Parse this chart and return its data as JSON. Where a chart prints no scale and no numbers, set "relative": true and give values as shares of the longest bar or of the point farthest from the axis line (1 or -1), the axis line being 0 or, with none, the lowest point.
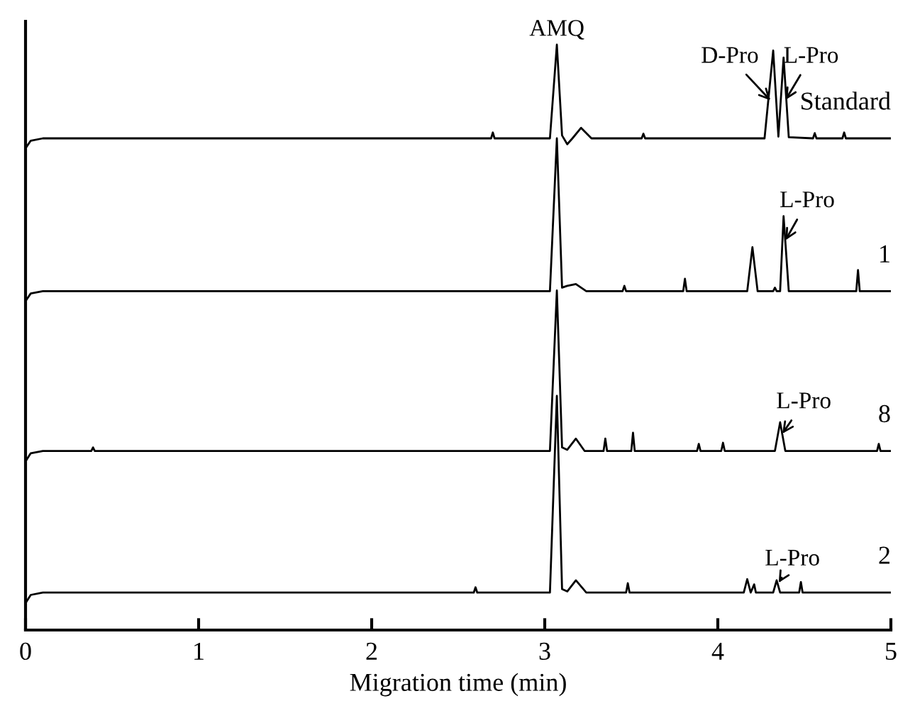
{
  "chart_data": {
    "type": "line",
    "relative": true,
    "xlabel": "Migration time (min)",
    "xlim": [
      0,
      5
    ],
    "xticks": [
      0,
      1,
      2,
      3,
      4,
      5
    ],
    "series": [
      {
        "name": "Standard",
        "color": "#000000",
        "x": [
          0,
          0.03,
          0.1,
          2.69,
          2.7,
          2.71,
          3.03,
          3.07,
          3.1,
          3.13,
          3.16,
          3.21,
          3.27,
          3.56,
          3.57,
          3.58,
          4.27,
          4.32,
          4.35,
          4.38,
          4.41,
          4.55,
          4.56,
          4.57,
          4.72,
          4.73,
          4.74,
          5.0
        ],
        "values": [
          0.823,
          0.836,
          0.84,
          0.84,
          0.85,
          0.84,
          0.84,
          1.0,
          0.845,
          0.83,
          0.84,
          0.858,
          0.84,
          0.84,
          0.848,
          0.84,
          0.84,
          0.99,
          0.843,
          0.978,
          0.842,
          0.84,
          0.849,
          0.84,
          0.84,
          0.85,
          0.84,
          0.84
        ]
      },
      {
        "name": "1",
        "color": "#000000",
        "x": [
          0,
          0.03,
          0.1,
          3.03,
          3.07,
          3.1,
          3.13,
          3.18,
          3.24,
          3.45,
          3.46,
          3.47,
          3.8,
          3.81,
          3.82,
          4.17,
          4.2,
          4.23,
          4.32,
          4.33,
          4.34,
          4.36,
          4.38,
          4.41,
          4.8,
          4.81,
          4.82,
          5.0
        ],
        "values": [
          0.562,
          0.575,
          0.579,
          0.579,
          0.84,
          0.585,
          0.588,
          0.591,
          0.579,
          0.579,
          0.588,
          0.579,
          0.579,
          0.6,
          0.579,
          0.579,
          0.654,
          0.579,
          0.579,
          0.585,
          0.579,
          0.579,
          0.707,
          0.579,
          0.579,
          0.615,
          0.579,
          0.579
        ]
      },
      {
        "name": "8",
        "color": "#000000",
        "x": [
          0,
          0.03,
          0.1,
          0.38,
          0.39,
          0.4,
          3.03,
          3.07,
          3.1,
          3.13,
          3.18,
          3.23,
          3.34,
          3.35,
          3.36,
          3.5,
          3.51,
          3.52,
          3.88,
          3.89,
          3.9,
          4.02,
          4.03,
          4.04,
          4.33,
          4.36,
          4.39,
          4.92,
          4.93,
          4.94,
          5.0
        ],
        "values": [
          0.288,
          0.302,
          0.306,
          0.306,
          0.312,
          0.306,
          0.306,
          0.58,
          0.312,
          0.308,
          0.327,
          0.306,
          0.306,
          0.327,
          0.306,
          0.306,
          0.337,
          0.306,
          0.306,
          0.318,
          0.306,
          0.306,
          0.32,
          0.306,
          0.306,
          0.355,
          0.306,
          0.306,
          0.318,
          0.306,
          0.306
        ]
      },
      {
        "name": "2",
        "color": "#000000",
        "x": [
          0,
          0.03,
          0.1,
          2.59,
          2.6,
          2.61,
          3.03,
          3.07,
          3.1,
          3.13,
          3.18,
          3.24,
          3.47,
          3.48,
          3.49,
          4.15,
          4.17,
          4.19,
          4.21,
          4.22,
          4.32,
          4.34,
          4.36,
          4.47,
          4.48,
          4.49,
          5.0
        ],
        "values": [
          0.046,
          0.06,
          0.064,
          0.064,
          0.073,
          0.064,
          0.064,
          0.4,
          0.07,
          0.066,
          0.085,
          0.064,
          0.064,
          0.08,
          0.064,
          0.064,
          0.087,
          0.064,
          0.078,
          0.064,
          0.064,
          0.085,
          0.064,
          0.064,
          0.082,
          0.064,
          0.064
        ]
      }
    ],
    "annotations": [
      {
        "text": "AMQ",
        "x": 3.07,
        "y": 1.0
      },
      {
        "text": "D-Pro",
        "x": 4.32,
        "y": 0.9
      },
      {
        "text": "L-Pro",
        "x": 4.38,
        "y": 0.9
      },
      {
        "text": "L-Pro",
        "x": 4.38,
        "y": 0.66
      },
      {
        "text": "L-Pro",
        "x": 4.36,
        "y": 0.33
      },
      {
        "text": "L-Pro",
        "x": 4.34,
        "y": 0.075
      }
    ]
  }
}
